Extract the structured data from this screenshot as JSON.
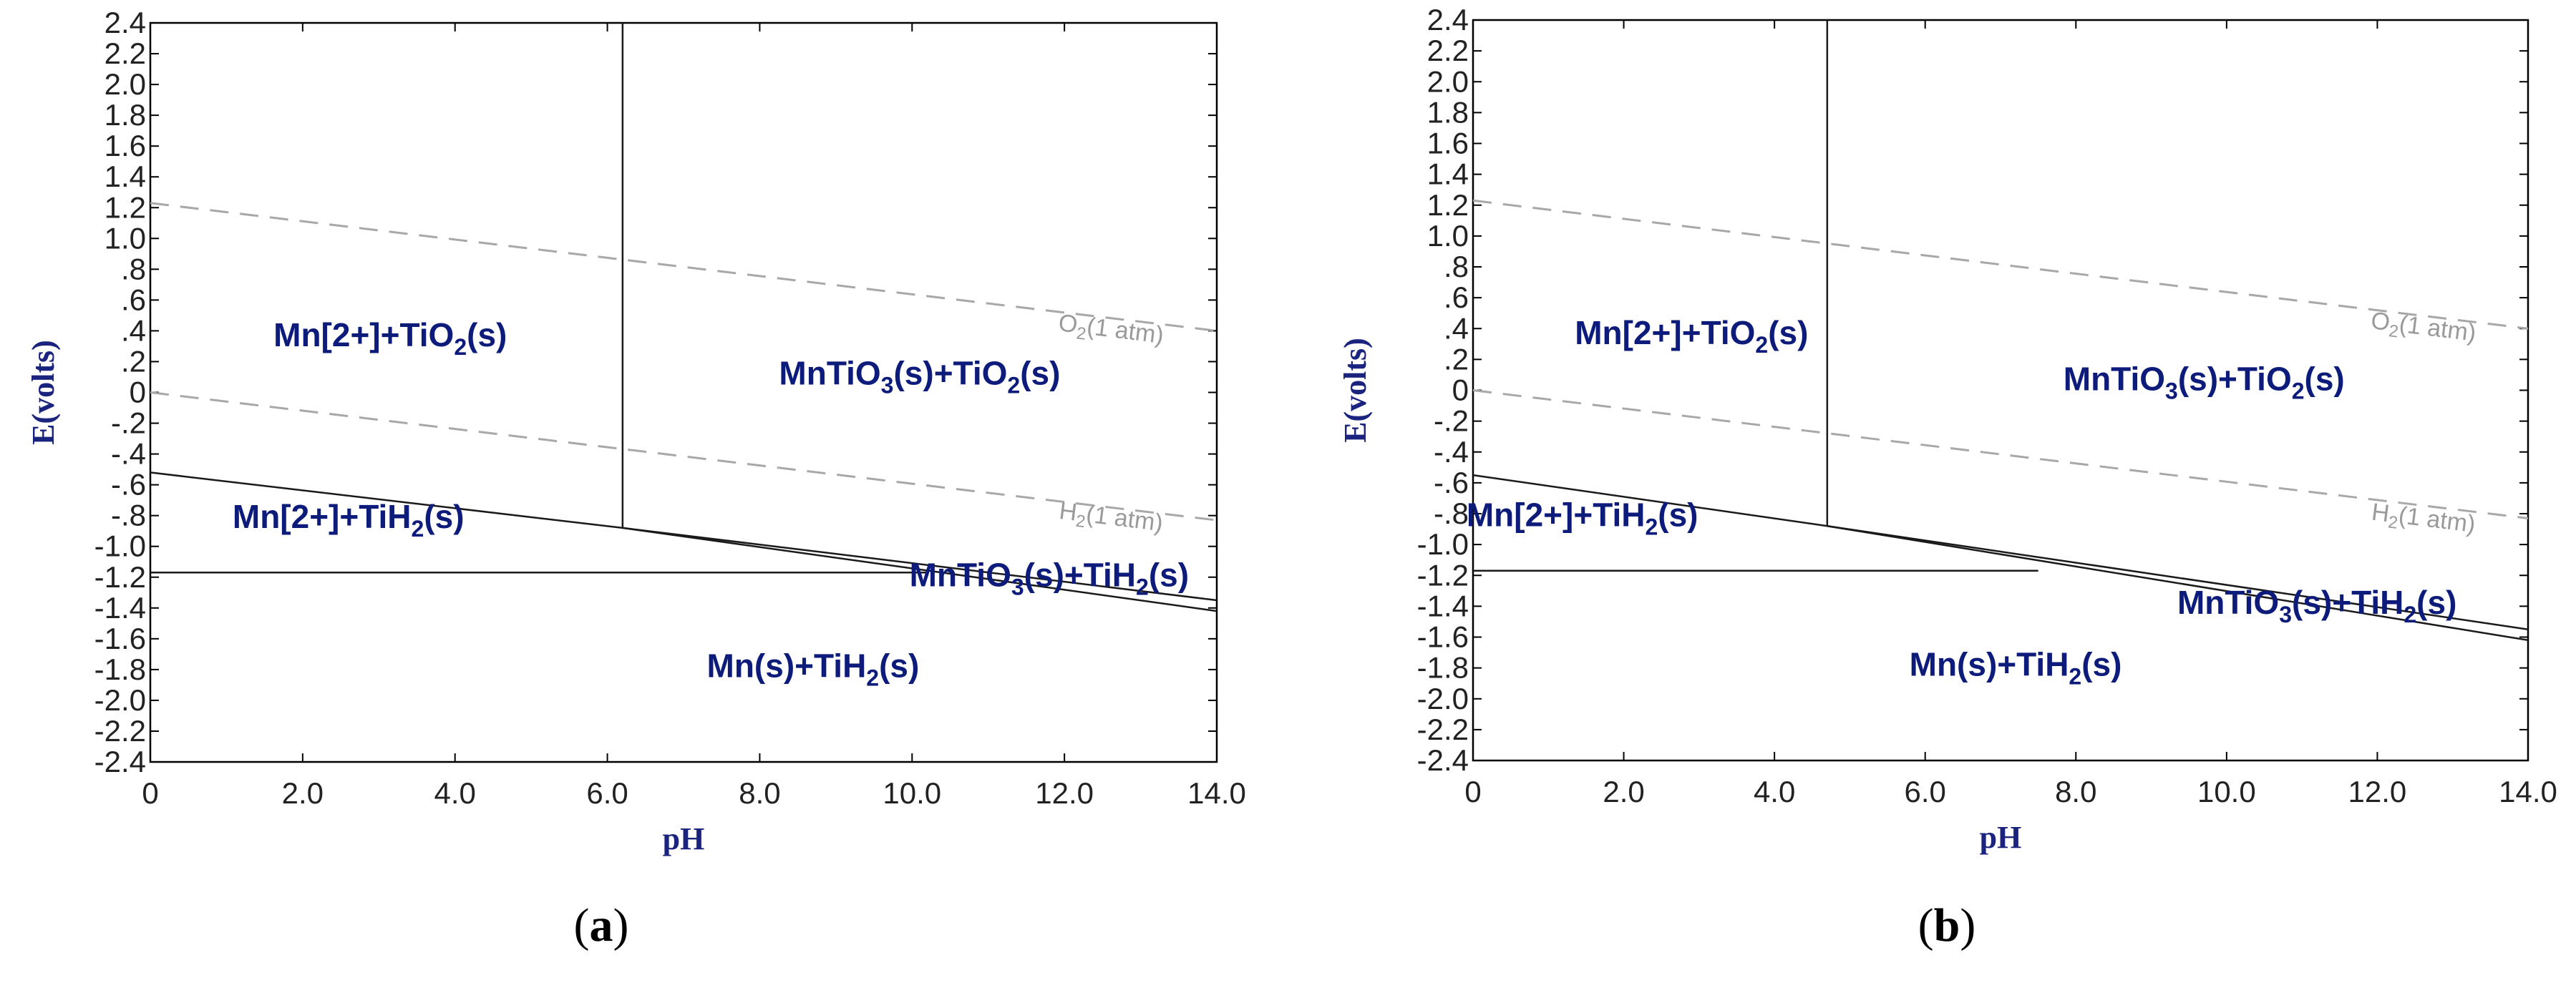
{
  "chart_data": [
    {
      "type": "line",
      "panel": "a",
      "panel_label": {
        "open": "(",
        "letter": "a",
        "close": ")"
      },
      "xlabel": "pH",
      "ylabel": "E(volts)",
      "xlim": [
        0,
        14
      ],
      "ylim": [
        -2.4,
        2.4
      ],
      "xticks": [
        0,
        2,
        4,
        6,
        8,
        10,
        12,
        14
      ],
      "yticks": [
        2.4,
        2.2,
        2.0,
        1.8,
        1.6,
        1.4,
        1.2,
        1.0,
        0.8,
        0.6,
        0.4,
        0.2,
        0,
        -0.2,
        -0.4,
        -0.6,
        -0.8,
        -1.0,
        -1.2,
        -1.4,
        -1.6,
        -1.8,
        -2.0,
        -2.2,
        -2.4
      ],
      "boundaries": [
        {
          "name": "vertical",
          "points": [
            [
              6.2,
              2.55
            ],
            [
              6.2,
              -0.88
            ]
          ]
        },
        {
          "name": "tio2-tih2",
          "points": [
            [
              0,
              -0.52
            ],
            [
              6.2,
              -0.88
            ]
          ]
        },
        {
          "name": "mntio3-upper",
          "points": [
            [
              6.2,
              -0.88
            ],
            [
              14,
              -1.35
            ]
          ]
        },
        {
          "name": "mntio3-lower",
          "points": [
            [
              6.2,
              -0.88
            ],
            [
              14,
              -1.42
            ]
          ]
        },
        {
          "name": "horizontal",
          "points": [
            [
              0,
              -1.17
            ],
            [
              10.2,
              -1.17
            ]
          ]
        }
      ],
      "water_lines": [
        {
          "name": "O2",
          "points": [
            [
              0,
              1.23
            ],
            [
              14,
              0.4
            ]
          ]
        },
        {
          "name": "H2",
          "points": [
            [
              0,
              0.0
            ],
            [
              14,
              -0.83
            ]
          ]
        }
      ],
      "water_labels": [
        {
          "base": "O",
          "sub": "2",
          "rest": "(1 atm)",
          "x": 12.6,
          "y": 0.36,
          "angle": 7
        },
        {
          "base": "H",
          "sub": "2",
          "rest": "(1 atm)",
          "x": 12.6,
          "y": -0.86,
          "angle": 7
        }
      ],
      "regions": [
        {
          "parts": [
            [
              "Mn[2+]+TiO",
              false
            ],
            [
              "2",
              true
            ],
            [
              "(s)",
              false
            ]
          ],
          "x": 3.15,
          "y": 0.3
        },
        {
          "parts": [
            [
              "MnTiO",
              false
            ],
            [
              "3",
              true
            ],
            [
              "(s)+TiO",
              false
            ],
            [
              "2",
              true
            ],
            [
              "(s)",
              false
            ]
          ],
          "x": 10.1,
          "y": 0.05
        },
        {
          "parts": [
            [
              "Mn[2+]+TiH",
              false
            ],
            [
              "2",
              true
            ],
            [
              "(s)",
              false
            ]
          ],
          "x": 2.6,
          "y": -0.88
        },
        {
          "parts": [
            [
              "MnTiO",
              false
            ],
            [
              "3",
              true
            ],
            [
              "(s)+TiH",
              false
            ],
            [
              "2",
              true
            ],
            [
              "(s)",
              false
            ]
          ],
          "x": 11.8,
          "y": -1.26
        },
        {
          "parts": [
            [
              "Mn(s)+TiH",
              false
            ],
            [
              "2",
              true
            ],
            [
              "(s)",
              false
            ]
          ],
          "x": 8.7,
          "y": -1.85
        }
      ]
    },
    {
      "type": "line",
      "panel": "b",
      "panel_label": {
        "open": "(",
        "letter": "b",
        "close": ")"
      },
      "xlabel": "pH",
      "ylabel": "E(volts)",
      "xlim": [
        0,
        14
      ],
      "ylim": [
        -2.4,
        2.4
      ],
      "xticks": [
        0,
        2,
        4,
        6,
        8,
        10,
        12,
        14
      ],
      "yticks": [
        2.4,
        2.2,
        2.0,
        1.8,
        1.6,
        1.4,
        1.2,
        1.0,
        0.8,
        0.6,
        0.4,
        0.2,
        0,
        -0.2,
        -0.4,
        -0.6,
        -0.8,
        -1.0,
        -1.2,
        -1.4,
        -1.6,
        -1.8,
        -2.0,
        -2.2,
        -2.4
      ],
      "boundaries": [
        {
          "name": "vertical",
          "points": [
            [
              4.7,
              2.55
            ],
            [
              4.7,
              -0.88
            ]
          ]
        },
        {
          "name": "tio2-tih2",
          "points": [
            [
              0,
              -0.55
            ],
            [
              4.7,
              -0.88
            ]
          ]
        },
        {
          "name": "mntio3-upper",
          "points": [
            [
              4.7,
              -0.88
            ],
            [
              14,
              -1.55
            ]
          ]
        },
        {
          "name": "mntio3-lower",
          "points": [
            [
              4.7,
              -0.88
            ],
            [
              14,
              -1.62
            ]
          ]
        },
        {
          "name": "horizontal",
          "points": [
            [
              0,
              -1.17
            ],
            [
              7.5,
              -1.17
            ]
          ]
        }
      ],
      "water_lines": [
        {
          "name": "O2",
          "points": [
            [
              0,
              1.23
            ],
            [
              14,
              0.4
            ]
          ]
        },
        {
          "name": "H2",
          "points": [
            [
              0,
              0.0
            ],
            [
              14,
              -0.83
            ]
          ]
        }
      ],
      "water_labels": [
        {
          "base": "O",
          "sub": "2",
          "rest": "(1 atm)",
          "x": 12.6,
          "y": 0.36,
          "angle": 7
        },
        {
          "base": "H",
          "sub": "2",
          "rest": "(1 atm)",
          "x": 12.6,
          "y": -0.88,
          "angle": 7
        }
      ],
      "regions": [
        {
          "parts": [
            [
              "Mn[2+]+TiO",
              false
            ],
            [
              "2",
              true
            ],
            [
              "(s)",
              false
            ]
          ],
          "x": 2.9,
          "y": 0.3
        },
        {
          "parts": [
            [
              "MnTiO",
              false
            ],
            [
              "3",
              true
            ],
            [
              "(s)+TiO",
              false
            ],
            [
              "2",
              true
            ],
            [
              "(s)",
              false
            ]
          ],
          "x": 9.7,
          "y": 0.0
        },
        {
          "parts": [
            [
              "Mn[2+]+TiH",
              false
            ],
            [
              "2",
              true
            ],
            [
              "(s)",
              false
            ]
          ],
          "x": 1.45,
          "y": -0.88
        },
        {
          "parts": [
            [
              "MnTiO",
              false
            ],
            [
              "3",
              true
            ],
            [
              "(s)+TiH",
              false
            ],
            [
              "2",
              true
            ],
            [
              "(s)",
              false
            ]
          ],
          "x": 11.2,
          "y": -1.45
        },
        {
          "parts": [
            [
              "Mn(s)+TiH",
              false
            ],
            [
              "2",
              true
            ],
            [
              "(s)",
              false
            ]
          ],
          "x": 7.2,
          "y": -1.85
        }
      ]
    }
  ]
}
